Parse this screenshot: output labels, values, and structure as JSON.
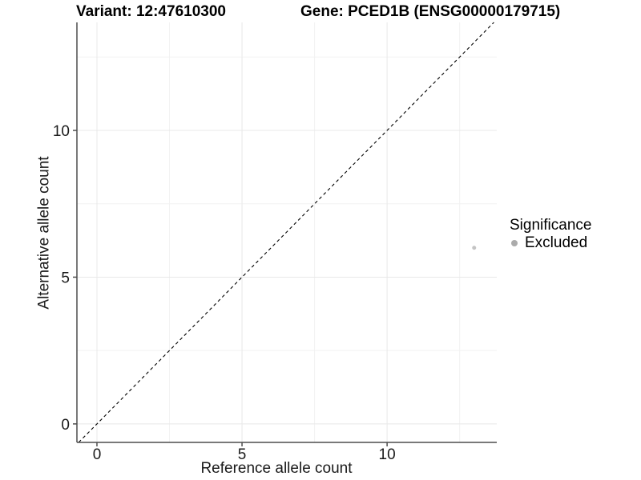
{
  "chart_data": {
    "type": "scatter",
    "title": "Variant: 12:47610300",
    "subtitle": "Gene: PCED1B (ENSG00000179715)",
    "xlabel": "Reference allele count",
    "ylabel": "Alternative allele count",
    "xlim": [
      -0.69,
      13.78
    ],
    "ylim": [
      -0.63,
      13.68
    ],
    "x_ticks": [
      0,
      5,
      10
    ],
    "y_ticks": [
      0,
      5,
      10
    ],
    "x_minor_ticks": [
      2.5,
      7.5,
      12.5
    ],
    "y_minor_ticks": [
      2.5,
      7.5,
      12.5
    ],
    "grid": {
      "show": true,
      "major_color": "#e8e8e8",
      "minor_color": "#f2f2f2"
    },
    "reference_line": {
      "kind": "identity",
      "slope": 1,
      "intercept": 0,
      "style": "dashed",
      "color": "#000000"
    },
    "axis_color": "#4d4d4d",
    "tick_label_color": "#1a1a1a",
    "series": [
      {
        "name": "Excluded",
        "color": "#c4c4c4",
        "point_radius": 2.5,
        "points": [
          [
            13,
            6
          ]
        ]
      }
    ],
    "legend": {
      "title": "Significance",
      "position": "right",
      "entries": [
        {
          "label": "Excluded",
          "color": "#ababab",
          "marker": "circle"
        }
      ]
    }
  }
}
